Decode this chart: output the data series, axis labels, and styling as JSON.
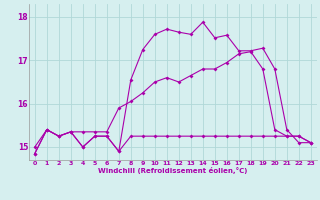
{
  "xlabel": "Windchill (Refroidissement éolien,°C)",
  "xlim": [
    -0.5,
    23.5
  ],
  "ylim": [
    14.7,
    18.3
  ],
  "xticks": [
    0,
    1,
    2,
    3,
    4,
    5,
    6,
    7,
    8,
    9,
    10,
    11,
    12,
    13,
    14,
    15,
    16,
    17,
    18,
    19,
    20,
    21,
    22,
    23
  ],
  "yticks": [
    15,
    16,
    17,
    18
  ],
  "background_color": "#d6efef",
  "grid_color": "#b0d8d8",
  "line_color": "#aa00aa",
  "line1_x": [
    0,
    1,
    2,
    3,
    4,
    5,
    6,
    7,
    8,
    9,
    10,
    11,
    12,
    13,
    14,
    15,
    16,
    17,
    18,
    19,
    20,
    21,
    22,
    23
  ],
  "line1_y": [
    14.85,
    15.4,
    15.25,
    15.35,
    15.0,
    15.25,
    15.25,
    14.9,
    15.25,
    15.25,
    15.25,
    15.25,
    15.25,
    15.25,
    15.25,
    15.25,
    15.25,
    15.25,
    15.25,
    15.25,
    15.25,
    15.25,
    15.25,
    15.1
  ],
  "line2_x": [
    0,
    1,
    2,
    3,
    4,
    5,
    6,
    7,
    8,
    9,
    10,
    11,
    12,
    13,
    14,
    15,
    16,
    17,
    18,
    19,
    20,
    21,
    22,
    23
  ],
  "line2_y": [
    15.0,
    15.4,
    15.25,
    15.35,
    15.35,
    15.35,
    15.35,
    15.9,
    16.05,
    16.25,
    16.5,
    16.6,
    16.5,
    16.65,
    16.8,
    16.8,
    16.95,
    17.15,
    17.2,
    16.8,
    15.4,
    15.25,
    15.25,
    15.1
  ],
  "line3_x": [
    0,
    1,
    2,
    3,
    4,
    5,
    6,
    7,
    8,
    9,
    10,
    11,
    12,
    13,
    14,
    15,
    16,
    17,
    18,
    19,
    20,
    21,
    22,
    23
  ],
  "line3_y": [
    14.85,
    15.4,
    15.25,
    15.35,
    15.0,
    15.25,
    15.25,
    14.9,
    16.55,
    17.25,
    17.6,
    17.72,
    17.65,
    17.6,
    17.88,
    17.52,
    17.58,
    17.22,
    17.22,
    17.28,
    16.8,
    15.4,
    15.1,
    15.1
  ]
}
